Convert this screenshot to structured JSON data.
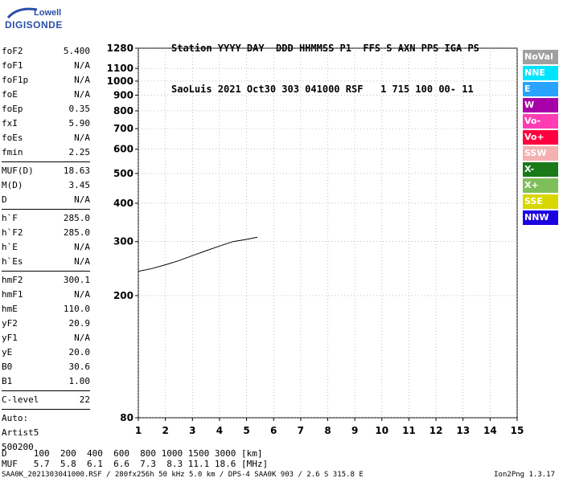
{
  "logo": {
    "line1": "Lowell",
    "line2": "DIGISONDE"
  },
  "header": {
    "line1": "Station YYYY DAY  DDD HHMMSS P1  FFS S AXN PPS IGA PS",
    "line2": "SaoLuis 2021 Oct30 303 041000 RSF   1 715 100 00- 11"
  },
  "params_a": [
    {
      "k": "foF2",
      "v": "5.400"
    },
    {
      "k": "foF1",
      "v": "N/A"
    },
    {
      "k": "foF1p",
      "v": "N/A"
    },
    {
      "k": "foE",
      "v": "N/A"
    },
    {
      "k": "foEp",
      "v": "0.35"
    },
    {
      "k": "fxI",
      "v": "5.90"
    },
    {
      "k": "foEs",
      "v": "N/A"
    },
    {
      "k": "fmin",
      "v": "2.25"
    }
  ],
  "params_b": [
    {
      "k": "MUF(D)",
      "v": "18.63"
    },
    {
      "k": "M(D)",
      "v": "3.45"
    },
    {
      "k": "D",
      "v": "N/A"
    }
  ],
  "params_c": [
    {
      "k": "h`F",
      "v": "285.0"
    },
    {
      "k": "h`F2",
      "v": "285.0"
    },
    {
      "k": "h`E",
      "v": "N/A"
    },
    {
      "k": "h`Es",
      "v": "N/A"
    }
  ],
  "params_d": [
    {
      "k": "hmF2",
      "v": "300.1"
    },
    {
      "k": "hmF1",
      "v": "N/A"
    },
    {
      "k": "hmE",
      "v": "110.0"
    },
    {
      "k": "yF2",
      "v": "20.9"
    },
    {
      "k": "yF1",
      "v": "N/A"
    },
    {
      "k": "yE",
      "v": "20.0"
    },
    {
      "k": "B0",
      "v": "30.6"
    },
    {
      "k": "B1",
      "v": "1.00"
    }
  ],
  "params_e": [
    {
      "k": "C-level",
      "v": "22"
    }
  ],
  "auto": {
    "line1": "Auto:",
    "line2": "Artist5",
    "line3": "500200"
  },
  "legend": [
    {
      "label": "NoVal",
      "color": "#a0a0a0"
    },
    {
      "label": "NNE",
      "color": "#00e5ff"
    },
    {
      "label": "E",
      "color": "#29a3ff"
    },
    {
      "label": "W",
      "color": "#a800a8"
    },
    {
      "label": "Vo-",
      "color": "#ff3cb4"
    },
    {
      "label": "Vo+",
      "color": "#ff0040"
    },
    {
      "label": "SSW",
      "color": "#f5b0b0"
    },
    {
      "label": "X-",
      "color": "#1a7a1a"
    },
    {
      "label": "X+",
      "color": "#7fbf5a"
    },
    {
      "label": "SSE",
      "color": "#d8d800"
    },
    {
      "label": "NNW",
      "color": "#1a00e0"
    }
  ],
  "footer": {
    "d_line": "D     100  200  400  600  800 1000 1500 3000 [km]",
    "muf_line": "MUF   5.7  5.8  6.1  6.6  7.3  8.3 11.1 18.6 [MHz]",
    "bottom_left": "SAA0K_2021303041000.RSF / 280fx256h 50 kHz 5.0 km / DPS-4 SAA0K 903 / 2.6 S 315.8 E",
    "bottom_right": "Ion2Png 1.3.17"
  },
  "chart_data": {
    "type": "scatter",
    "xlabel": "",
    "ylabel": "",
    "xlim": [
      1,
      15
    ],
    "ylim": [
      80,
      1280
    ],
    "y_scale": "log",
    "x_ticks": [
      1,
      2,
      3,
      4,
      5,
      6,
      7,
      8,
      9,
      10,
      11,
      12,
      13,
      14,
      15
    ],
    "y_ticks": [
      80,
      200,
      300,
      400,
      500,
      600,
      700,
      800,
      900,
      1000,
      1100,
      1280
    ],
    "grid": true,
    "trace": {
      "x": [
        1.0,
        1.5,
        2.0,
        2.5,
        3.0,
        3.5,
        4.0,
        4.5,
        5.0,
        5.4
      ],
      "y": [
        240,
        245,
        252,
        260,
        270,
        280,
        290,
        300,
        305,
        310
      ]
    }
  }
}
